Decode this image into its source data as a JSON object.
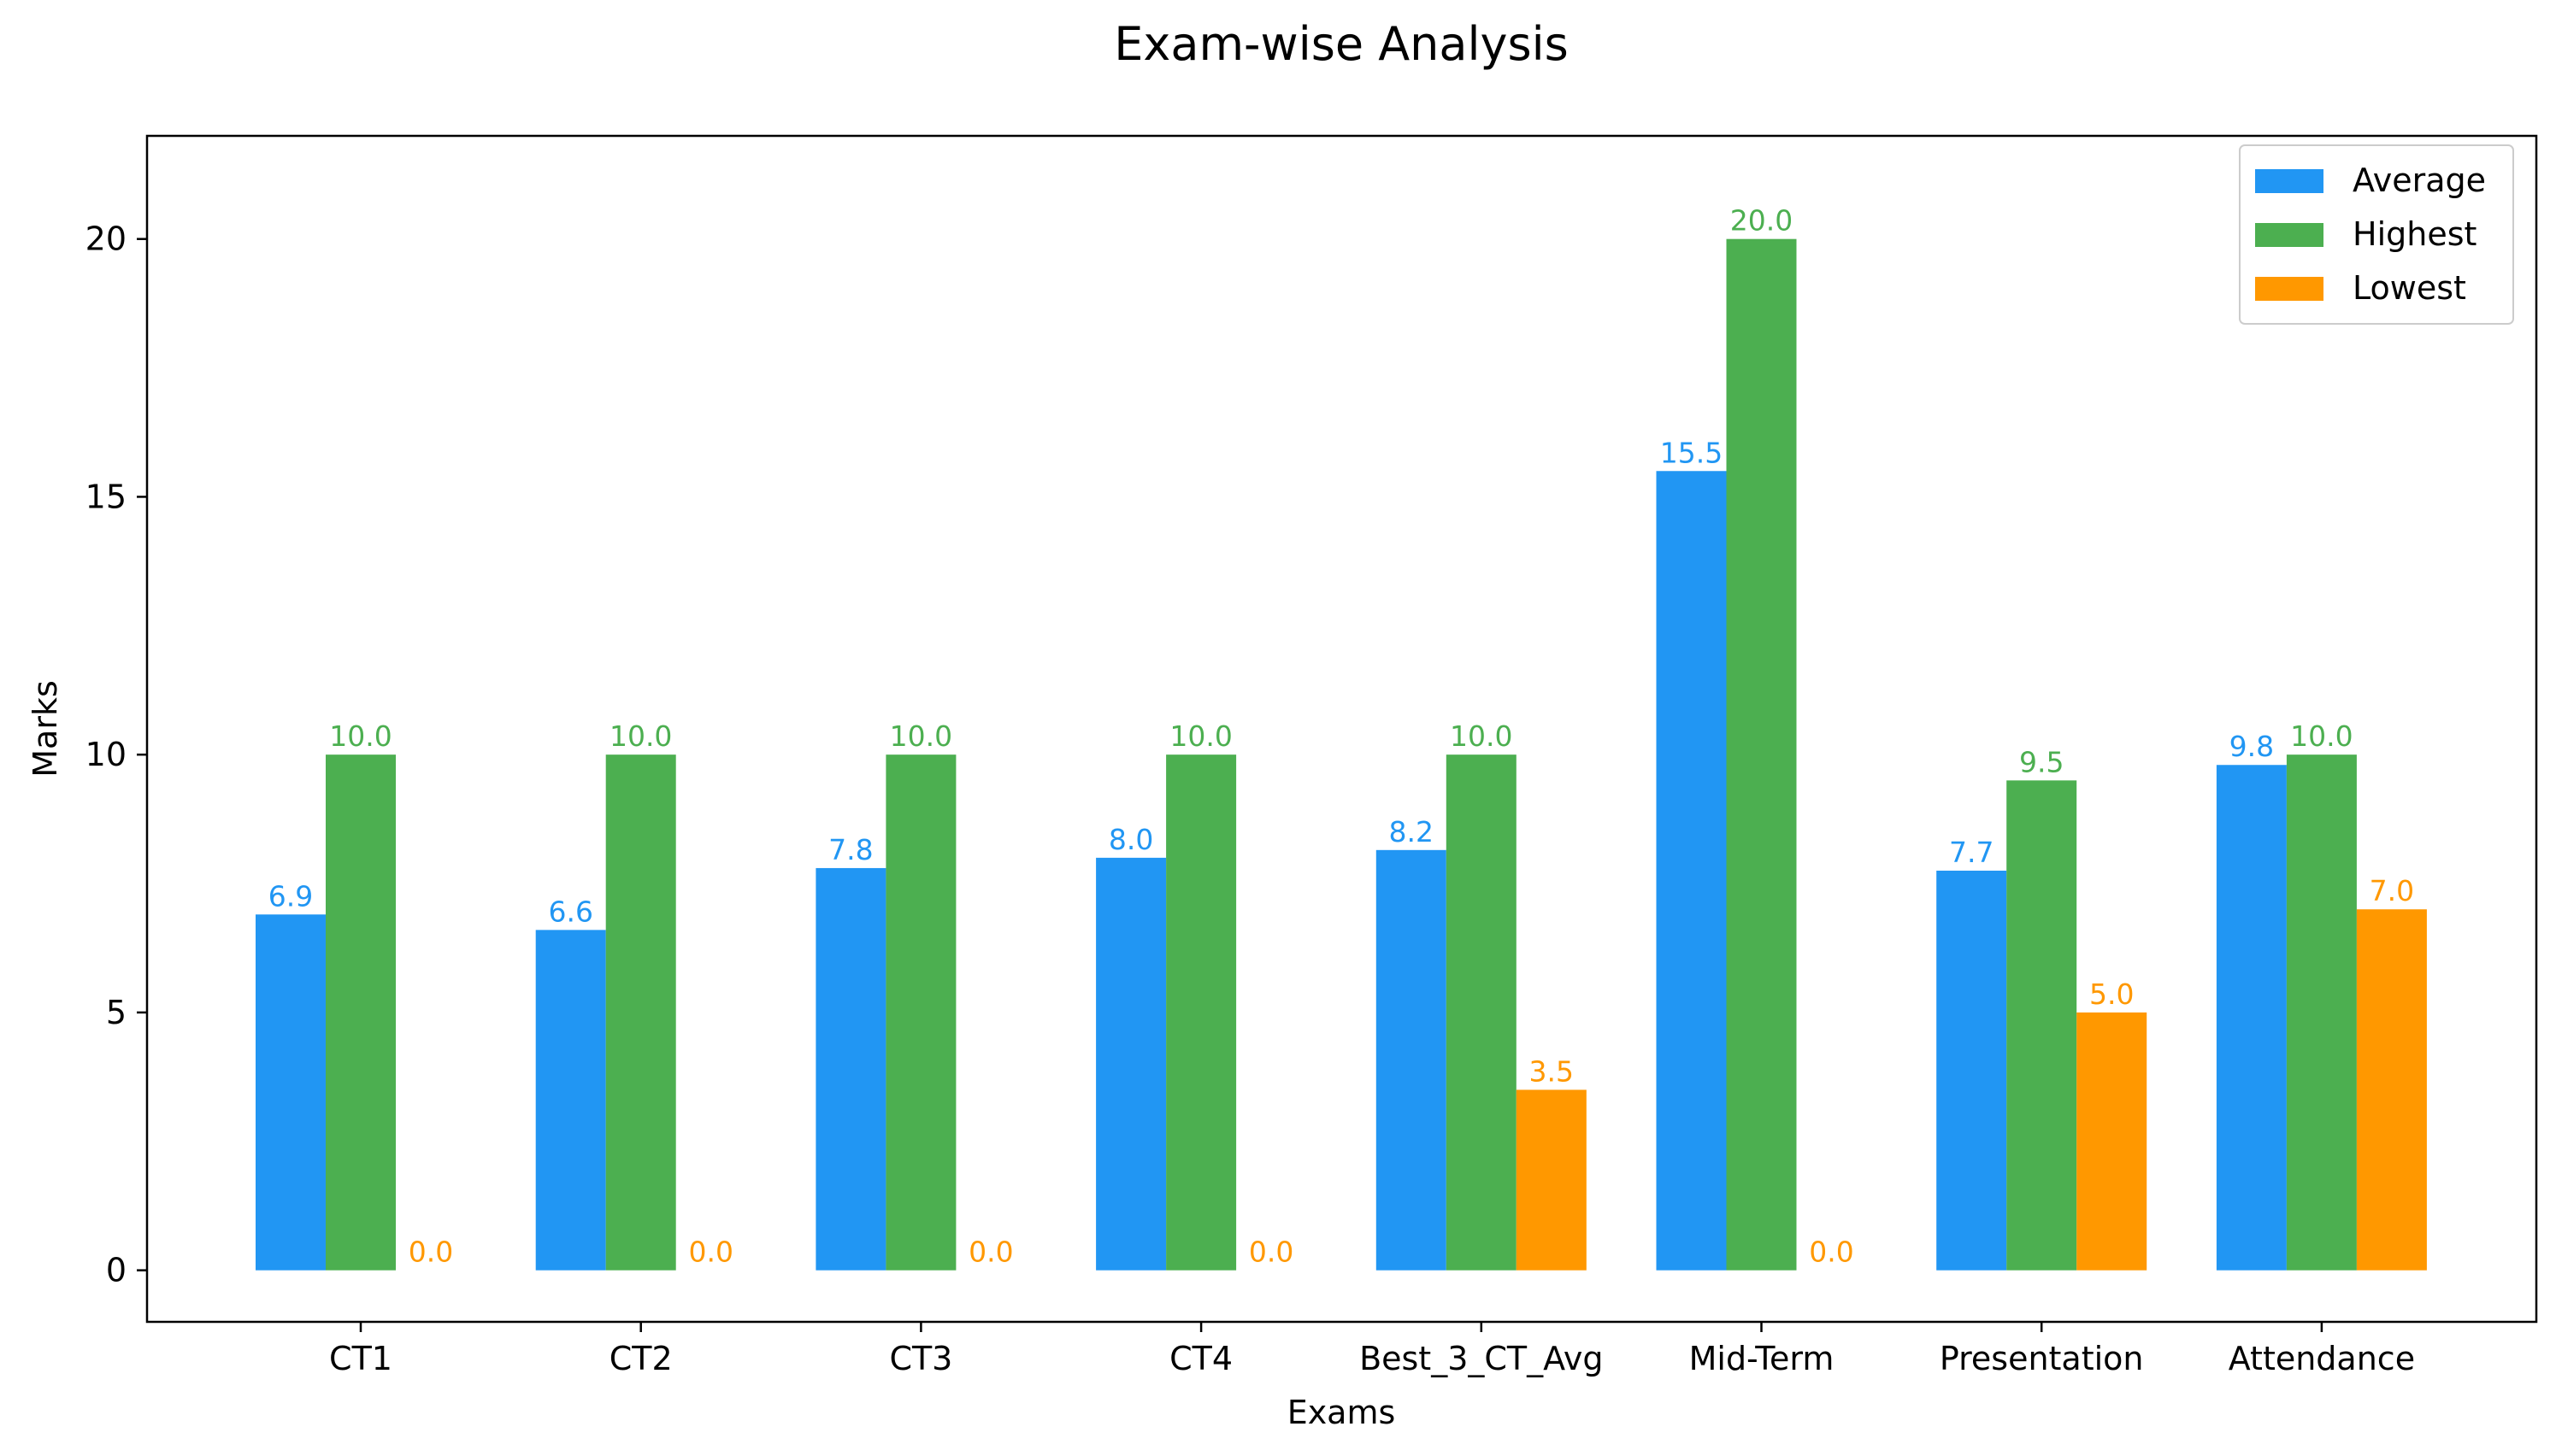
{
  "chart_data": {
    "type": "bar",
    "title": "Exam-wise Analysis",
    "xlabel": "Exams",
    "ylabel": "Marks",
    "categories": [
      "CT1",
      "CT2",
      "CT3",
      "CT4",
      "Best_3_CT_Avg",
      "Mid-Term",
      "Presentation",
      "Attendance"
    ],
    "series": [
      {
        "name": "Average",
        "color": "#2196F3",
        "values": [
          6.9,
          6.6,
          7.8,
          8.0,
          8.15,
          15.5,
          7.75,
          9.8
        ],
        "labels": [
          "6.9",
          "6.6",
          "7.8",
          "8.0",
          "8.2",
          "15.5",
          "7.7",
          "9.8"
        ]
      },
      {
        "name": "Highest",
        "color": "#4CAF50",
        "values": [
          10.0,
          10.0,
          10.0,
          10.0,
          10.0,
          20.0,
          9.5,
          10.0
        ],
        "labels": [
          "10.0",
          "10.0",
          "10.0",
          "10.0",
          "10.0",
          "20.0",
          "9.5",
          "10.0"
        ]
      },
      {
        "name": "Lowest",
        "color": "#FF9800",
        "values": [
          0.0,
          0.0,
          0.0,
          0.0,
          3.5,
          0.0,
          5.0,
          7.0
        ],
        "labels": [
          "0.0",
          "0.0",
          "0.0",
          "0.0",
          "3.5",
          "0.0",
          "5.0",
          "7.0"
        ]
      }
    ],
    "ylim": [
      -1,
      22
    ],
    "yticks": [
      0,
      5,
      10,
      15,
      20
    ],
    "legend": "top-right",
    "grid": false
  }
}
